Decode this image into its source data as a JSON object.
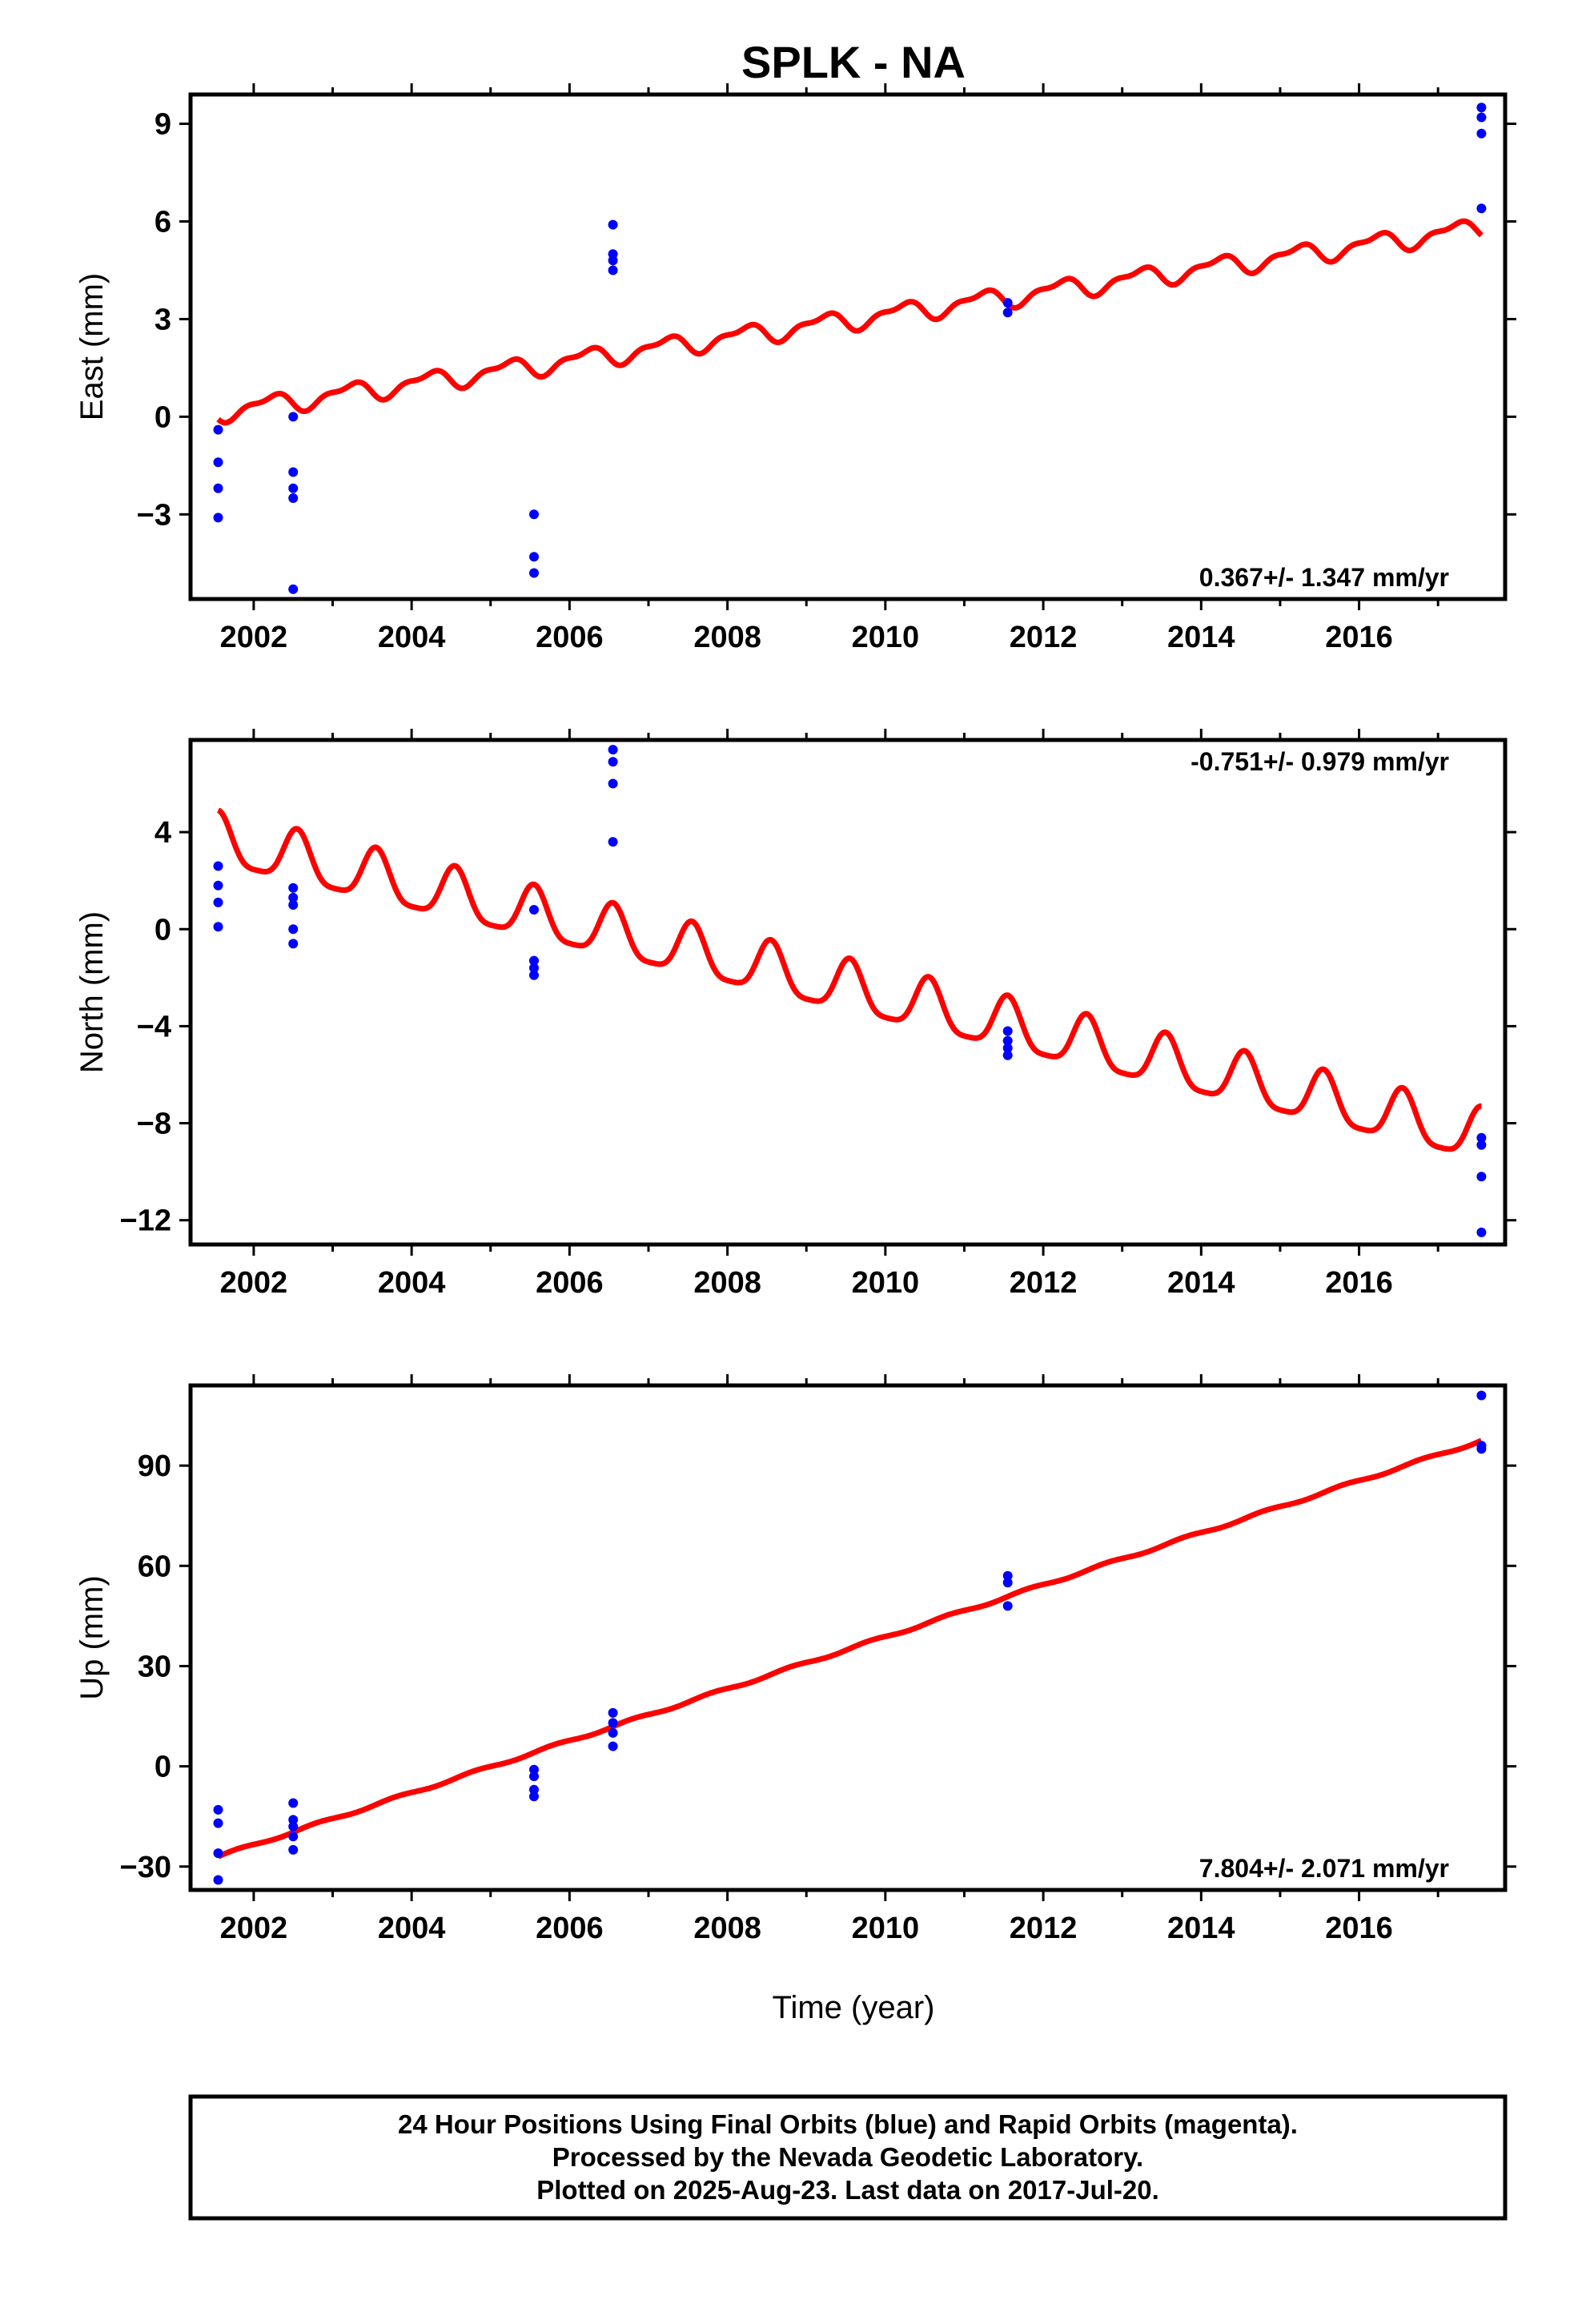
{
  "title": "SPLK - NA",
  "xlabel": "Time (year)",
  "footer": {
    "line1": "24 Hour Positions Using Final Orbits (blue) and Rapid Orbits (magenta).",
    "line2": "Processed by the Nevada Geodetic Laboratory.",
    "line3": "Plotted on 2025-Aug-23. Last data on 2017-Jul-20."
  },
  "colors": {
    "data": "#0000ff",
    "model": "#ff0000",
    "frame": "#000000"
  },
  "chart_data": [
    {
      "type": "scatter",
      "component": "east",
      "ylabel": "East (mm)",
      "rate_label": "0.367+/- 1.347 mm/yr",
      "rate_position": "bottom-right",
      "xlim": [
        2001.2,
        2017.85
      ],
      "ylim": [
        -5.6,
        9.9
      ],
      "x_ticks": [
        2002,
        2004,
        2006,
        2008,
        2010,
        2012,
        2014,
        2016
      ],
      "y_ticks": [
        -3,
        0,
        3,
        6,
        9
      ],
      "y_tick_labels": [
        "−3",
        "0",
        "3",
        "6",
        "9"
      ],
      "points": [
        [
          2001.55,
          -0.4
        ],
        [
          2001.55,
          -1.4
        ],
        [
          2001.55,
          -2.2
        ],
        [
          2001.55,
          -3.1
        ],
        [
          2002.5,
          0.0
        ],
        [
          2002.5,
          -1.7
        ],
        [
          2002.5,
          -2.2
        ],
        [
          2002.5,
          -2.5
        ],
        [
          2002.5,
          -5.3
        ],
        [
          2005.55,
          -3.0
        ],
        [
          2005.55,
          -4.3
        ],
        [
          2005.55,
          -4.8
        ],
        [
          2006.55,
          5.9
        ],
        [
          2006.55,
          5.0
        ],
        [
          2006.55,
          4.8
        ],
        [
          2006.55,
          4.5
        ],
        [
          2011.55,
          3.5
        ],
        [
          2011.55,
          3.2
        ],
        [
          2017.55,
          9.5
        ],
        [
          2017.55,
          9.2
        ],
        [
          2017.55,
          8.7
        ],
        [
          2017.55,
          6.4
        ]
      ],
      "model": {
        "x_start": 2001.55,
        "x_end": 2017.55,
        "y_start": 0.15,
        "y_end": 5.8,
        "annual_amp": 0.27,
        "semi_amp": 0.12,
        "phase": 0.6
      }
    },
    {
      "type": "scatter",
      "component": "north",
      "ylabel": "North (mm)",
      "rate_label": "-0.751+/- 0.979 mm/yr",
      "rate_position": "top-right",
      "xlim": [
        2001.2,
        2017.85
      ],
      "ylim": [
        -13.0,
        7.8
      ],
      "x_ticks": [
        2002,
        2004,
        2006,
        2008,
        2010,
        2012,
        2014,
        2016
      ],
      "y_ticks": [
        -12,
        -8,
        -4,
        0,
        4
      ],
      "y_tick_labels": [
        "−12",
        "−8",
        "−4",
        "0",
        "4"
      ],
      "points": [
        [
          2001.55,
          2.6
        ],
        [
          2001.55,
          1.8
        ],
        [
          2001.55,
          1.1
        ],
        [
          2001.55,
          0.1
        ],
        [
          2002.5,
          1.7
        ],
        [
          2002.5,
          1.3
        ],
        [
          2002.5,
          1.0
        ],
        [
          2002.5,
          0.0
        ],
        [
          2002.5,
          -0.6
        ],
        [
          2005.55,
          0.8
        ],
        [
          2005.55,
          -1.3
        ],
        [
          2005.55,
          -1.6
        ],
        [
          2005.55,
          -1.9
        ],
        [
          2006.55,
          7.4
        ],
        [
          2006.55,
          6.9
        ],
        [
          2006.55,
          6.0
        ],
        [
          2006.55,
          3.6
        ],
        [
          2011.55,
          -4.2
        ],
        [
          2011.55,
          -4.6
        ],
        [
          2011.55,
          -4.9
        ],
        [
          2011.55,
          -5.2
        ],
        [
          2017.55,
          -8.6
        ],
        [
          2017.55,
          -8.9
        ],
        [
          2017.55,
          -10.2
        ],
        [
          2017.55,
          -12.5
        ]
      ],
      "model": {
        "x_start": 2001.55,
        "x_end": 2017.55,
        "y_start": 3.6,
        "y_end": -8.6,
        "annual_amp": 1.05,
        "semi_amp": 0.25,
        "phase": 0.25
      }
    },
    {
      "type": "scatter",
      "component": "up",
      "ylabel": "Up (mm)",
      "rate_label": "7.804+/- 2.071 mm/yr",
      "rate_position": "bottom-right",
      "xlim": [
        2001.2,
        2017.85
      ],
      "ylim": [
        -37,
        114
      ],
      "x_ticks": [
        2002,
        2004,
        2006,
        2008,
        2010,
        2012,
        2014,
        2016
      ],
      "y_ticks": [
        -30,
        0,
        30,
        60,
        90
      ],
      "y_tick_labels": [
        "−30",
        "0",
        "30",
        "60",
        "90"
      ],
      "points": [
        [
          2001.55,
          -13
        ],
        [
          2001.55,
          -17
        ],
        [
          2001.55,
          -26
        ],
        [
          2001.55,
          -34
        ],
        [
          2002.5,
          -11
        ],
        [
          2002.5,
          -16
        ],
        [
          2002.5,
          -18
        ],
        [
          2002.5,
          -21
        ],
        [
          2002.5,
          -25
        ],
        [
          2005.55,
          -1
        ],
        [
          2005.55,
          -3
        ],
        [
          2005.55,
          -7
        ],
        [
          2005.55,
          -9
        ],
        [
          2006.55,
          16
        ],
        [
          2006.55,
          13
        ],
        [
          2006.55,
          10
        ],
        [
          2006.55,
          6
        ],
        [
          2011.55,
          57
        ],
        [
          2011.55,
          55
        ],
        [
          2011.55,
          48
        ],
        [
          2017.55,
          111
        ],
        [
          2017.55,
          96
        ],
        [
          2017.55,
          95
        ]
      ],
      "model": {
        "x_start": 2001.55,
        "x_end": 2017.55,
        "y_start": -27,
        "y_end": 97.5,
        "annual_amp": 0.4,
        "semi_amp": 0.0,
        "phase": 0.0
      }
    }
  ]
}
